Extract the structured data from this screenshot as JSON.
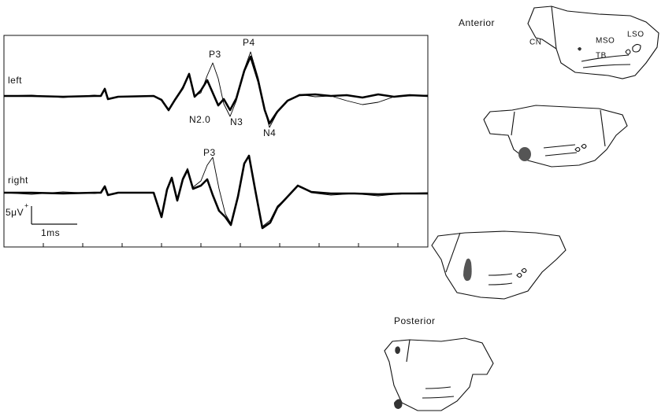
{
  "traces": {
    "left": {
      "label": "left",
      "peaks": [
        "P3",
        "P4",
        "N2.0",
        "N3",
        "N4"
      ]
    },
    "right": {
      "label": "right",
      "peaks": [
        "P3"
      ]
    }
  },
  "scale_bar": {
    "voltage": "5μV",
    "polarity": "+",
    "time": "1ms"
  },
  "sections": {
    "anterior": "Anterior",
    "posterior": "Posterior",
    "nuclei": [
      "CN",
      "MSO",
      "LSO",
      "TB"
    ]
  }
}
